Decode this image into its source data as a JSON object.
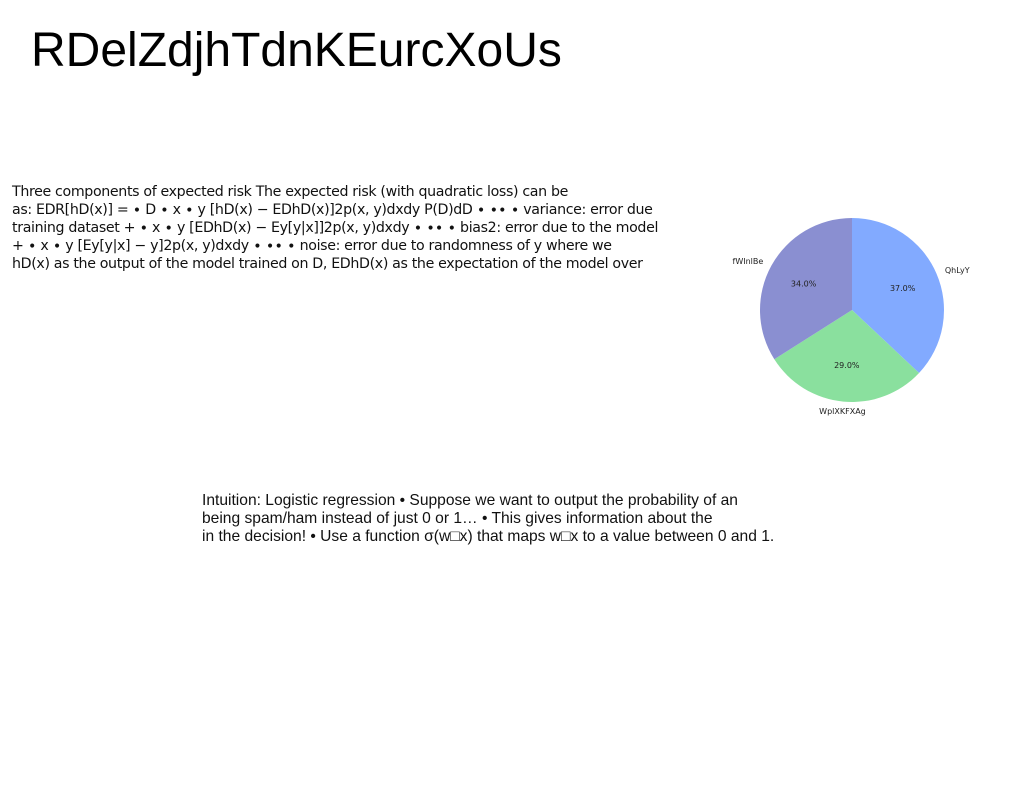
{
  "page": {
    "title": "RDelZdjhTdnKEurcXoUs"
  },
  "risk_text": {
    "lines": [
      "Three components of expected risk The expected risk (with quadratic loss) can be",
      "as: EDR[hD(x)] = ∙ D ∙ x ∙ y [hD(x) − EDhD(x)]2p(x, y)dxdy P(D)dD ∙ ∙∙ ∙ variance: error due",
      "training dataset + ∙ x ∙ y [EDhD(x) − Ey[y|x]]2p(x, y)dxdy ∙ ∙∙ ∙ bias2: error due to the model",
      "+ ∙ x ∙ y [Ey[y|x] − y]2p(x, y)dxdy ∙ ∙∙ ∙ noise: error due to randomness of y where we",
      "hD(x) as the output of the model trained on D, EDhD(x) as the expectation of the model over"
    ]
  },
  "logistic_text": {
    "lines": [
      "Intuition: Logistic regression • Suppose we want to output the probability of an",
      "being spam/ham instead of just 0 or 1… • This gives information about the",
      "in the decision! • Use a function σ(w□x) that maps w□x to a value between 0 and 1."
    ]
  },
  "chart_data": {
    "type": "pie",
    "title": "",
    "labels": [
      "QhLyY",
      "WplXKFXAg",
      "fWInlBe"
    ],
    "values": [
      37.0,
      29.0,
      34.0
    ],
    "value_labels": [
      "37.0%",
      "29.0%",
      "34.0%"
    ],
    "colors": [
      "#82aaff",
      "#8ae09e",
      "#8a8fd1"
    ],
    "start_angle_deg": 90,
    "direction": "clockwise",
    "legend": "none"
  }
}
